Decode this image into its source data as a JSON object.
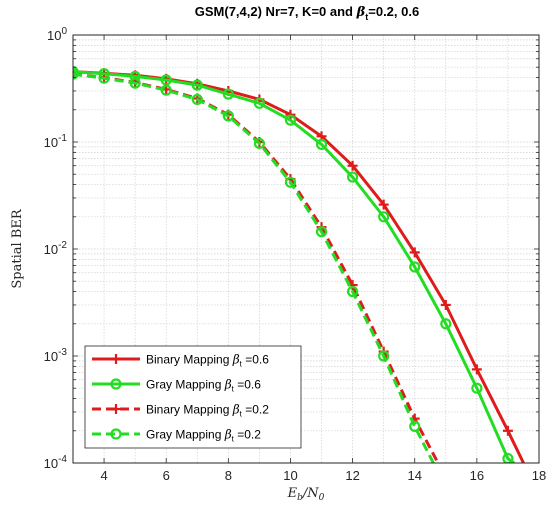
{
  "chart_data": {
    "type": "line",
    "title_main": "GSM(7,4,2) Nr=7, K=0 and ",
    "title_beta": "β",
    "title_sub": "t",
    "title_tail": "=0.2, 0.6",
    "xlabel_E": "E",
    "xlabel_b": "b",
    "xlabel_mid": "/N",
    "xlabel_0": "0",
    "ylabel": "Spatial BER",
    "xlim": [
      3,
      18
    ],
    "ylim": [
      0.0001,
      1
    ],
    "log_y": true,
    "grid": true,
    "x_ticks": [
      "4",
      "6",
      "8",
      "10",
      "12",
      "14",
      "16",
      "18"
    ],
    "y_ticks": [
      {
        "base": "10",
        "exp": "0"
      },
      {
        "base": "10",
        "exp": "-1"
      },
      {
        "base": "10",
        "exp": "-2"
      },
      {
        "base": "10",
        "exp": "-3"
      },
      {
        "base": "10",
        "exp": "-4"
      }
    ],
    "legend_placement": "bottom-left",
    "series": [
      {
        "label_main": "Binary Mapping",
        "label_beta": "β",
        "label_sub": "t",
        "label_val": "=0.6",
        "color": "#e01b1b",
        "dash": "solid",
        "marker": "plus",
        "x": [
          3,
          4,
          5,
          6,
          7,
          8,
          9,
          10,
          11,
          12,
          13,
          14,
          15,
          16,
          17,
          17.5
        ],
        "y": [
          0.455,
          0.44,
          0.42,
          0.39,
          0.35,
          0.3,
          0.25,
          0.18,
          0.113,
          0.06,
          0.026,
          0.0093,
          0.003,
          0.00075,
          0.0002,
          0.0001
        ]
      },
      {
        "label_main": "Gray Mapping",
        "label_beta": "β",
        "label_sub": "t",
        "label_val": "=0.6",
        "color": "#22dd22",
        "dash": "solid",
        "marker": "circle",
        "x": [
          3,
          4,
          5,
          6,
          7,
          8,
          9,
          10,
          11,
          12,
          13,
          14,
          15,
          16,
          17,
          17.2
        ],
        "y": [
          0.455,
          0.435,
          0.41,
          0.38,
          0.34,
          0.28,
          0.23,
          0.16,
          0.095,
          0.047,
          0.02,
          0.0068,
          0.002,
          0.0005,
          0.00011,
          0.0001
        ]
      },
      {
        "label_main": "Binary Mapping",
        "label_beta": "β",
        "label_sub": "t",
        "label_val": "=0.2",
        "color": "#e01b1b",
        "dash": "dashed",
        "marker": "plus",
        "x": [
          3,
          4,
          5,
          6,
          7,
          8,
          9,
          10,
          11,
          12,
          13,
          14,
          14.75
        ],
        "y": [
          0.43,
          0.4,
          0.36,
          0.31,
          0.255,
          0.18,
          0.1,
          0.045,
          0.016,
          0.0046,
          0.0011,
          0.00026,
          0.0001
        ]
      },
      {
        "label_main": "Gray Mapping",
        "label_beta": "β",
        "label_sub": "t",
        "label_val": "=0.2",
        "color": "#22dd22",
        "dash": "dashed",
        "marker": "circle",
        "x": [
          3,
          4,
          5,
          6,
          7,
          8,
          9,
          10,
          11,
          12,
          13,
          14,
          14.6
        ],
        "y": [
          0.43,
          0.395,
          0.355,
          0.305,
          0.25,
          0.175,
          0.097,
          0.042,
          0.0145,
          0.004,
          0.001,
          0.00022,
          0.0001
        ]
      }
    ]
  }
}
